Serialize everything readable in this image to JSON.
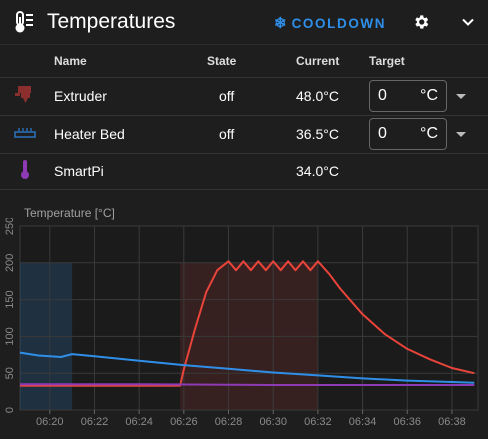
{
  "header": {
    "title": "Temperatures",
    "cooldown_label": "COOLDOWN",
    "icons": {
      "title": "thermometer-icon",
      "cooldown": "snowflake-icon",
      "settings": "gear-icon",
      "collapse": "chevron-down-icon"
    }
  },
  "table": {
    "columns": {
      "name": "Name",
      "state": "State",
      "current": "Current",
      "target": "Target"
    },
    "rows": [
      {
        "name": "Extruder",
        "state": "off",
        "current": "48.0°C",
        "target": "0",
        "unit": "°C",
        "icon": "extruder-icon",
        "color": "#8b2e2e"
      },
      {
        "name": "Heater Bed",
        "state": "off",
        "current": "36.5°C",
        "target": "0",
        "unit": "°C",
        "icon": "heater-bed-icon",
        "color": "#2a6fb5"
      },
      {
        "name": "SmartPi",
        "state": "",
        "current": "34.0°C",
        "target": "",
        "unit": "",
        "icon": "thermometer-icon",
        "color": "#8e3ab5"
      }
    ]
  },
  "chart_data": {
    "type": "line",
    "title": "",
    "ylabel": "Temperature [°C]",
    "xlabel": "",
    "ylim": [
      0,
      250
    ],
    "y_ticks": [
      0,
      50,
      100,
      150,
      200,
      250
    ],
    "x_tick_labels": [
      "06:20",
      "06:22",
      "06:24",
      "06:26",
      "06:28",
      "06:30",
      "06:32",
      "06:34",
      "06:36",
      "06:38"
    ],
    "grid": true,
    "series": [
      {
        "color": "#e8443a",
        "x": [
          "06:18:40",
          "06:20",
          "06:24",
          "06:25:50",
          "06:26",
          "06:26:30",
          "06:27",
          "06:27:30",
          "06:28",
          "06:28:20",
          "06:28:40",
          "06:29",
          "06:29:20",
          "06:29:40",
          "06:30",
          "06:30:20",
          "06:30:40",
          "06:31",
          "06:31:20",
          "06:31:40",
          "06:32",
          "06:32:30",
          "06:33",
          "06:34",
          "06:35",
          "06:36",
          "06:37",
          "06:38",
          "06:39"
        ],
        "y": [
          33,
          33,
          33,
          33,
          55,
          110,
          160,
          190,
          202,
          190,
          202,
          190,
          202,
          190,
          202,
          190,
          202,
          190,
          202,
          190,
          202,
          185,
          165,
          130,
          103,
          83,
          69,
          57,
          50
        ]
      },
      {
        "color": "#2f8fe8",
        "x": [
          "06:18:40",
          "06:19:30",
          "06:20:30",
          "06:21",
          "06:22",
          "06:24",
          "06:26",
          "06:28",
          "06:30",
          "06:32",
          "06:34",
          "06:36",
          "06:38",
          "06:39"
        ],
        "y": [
          78,
          74,
          72,
          76,
          73,
          67,
          61,
          56,
          51,
          47,
          43,
          40,
          38,
          37
        ]
      },
      {
        "color": "#8e3ab5",
        "x": [
          "06:18:40",
          "06:24",
          "06:30",
          "06:34",
          "06:39"
        ],
        "y": [
          35,
          35,
          34,
          34,
          34
        ]
      }
    ],
    "shaded_regions": [
      {
        "from": "06:18:40",
        "to": "06:21",
        "color": "#2a6fb5"
      },
      {
        "from": "06:25:50",
        "to": "06:32",
        "color": "#8b2e2e"
      }
    ]
  }
}
